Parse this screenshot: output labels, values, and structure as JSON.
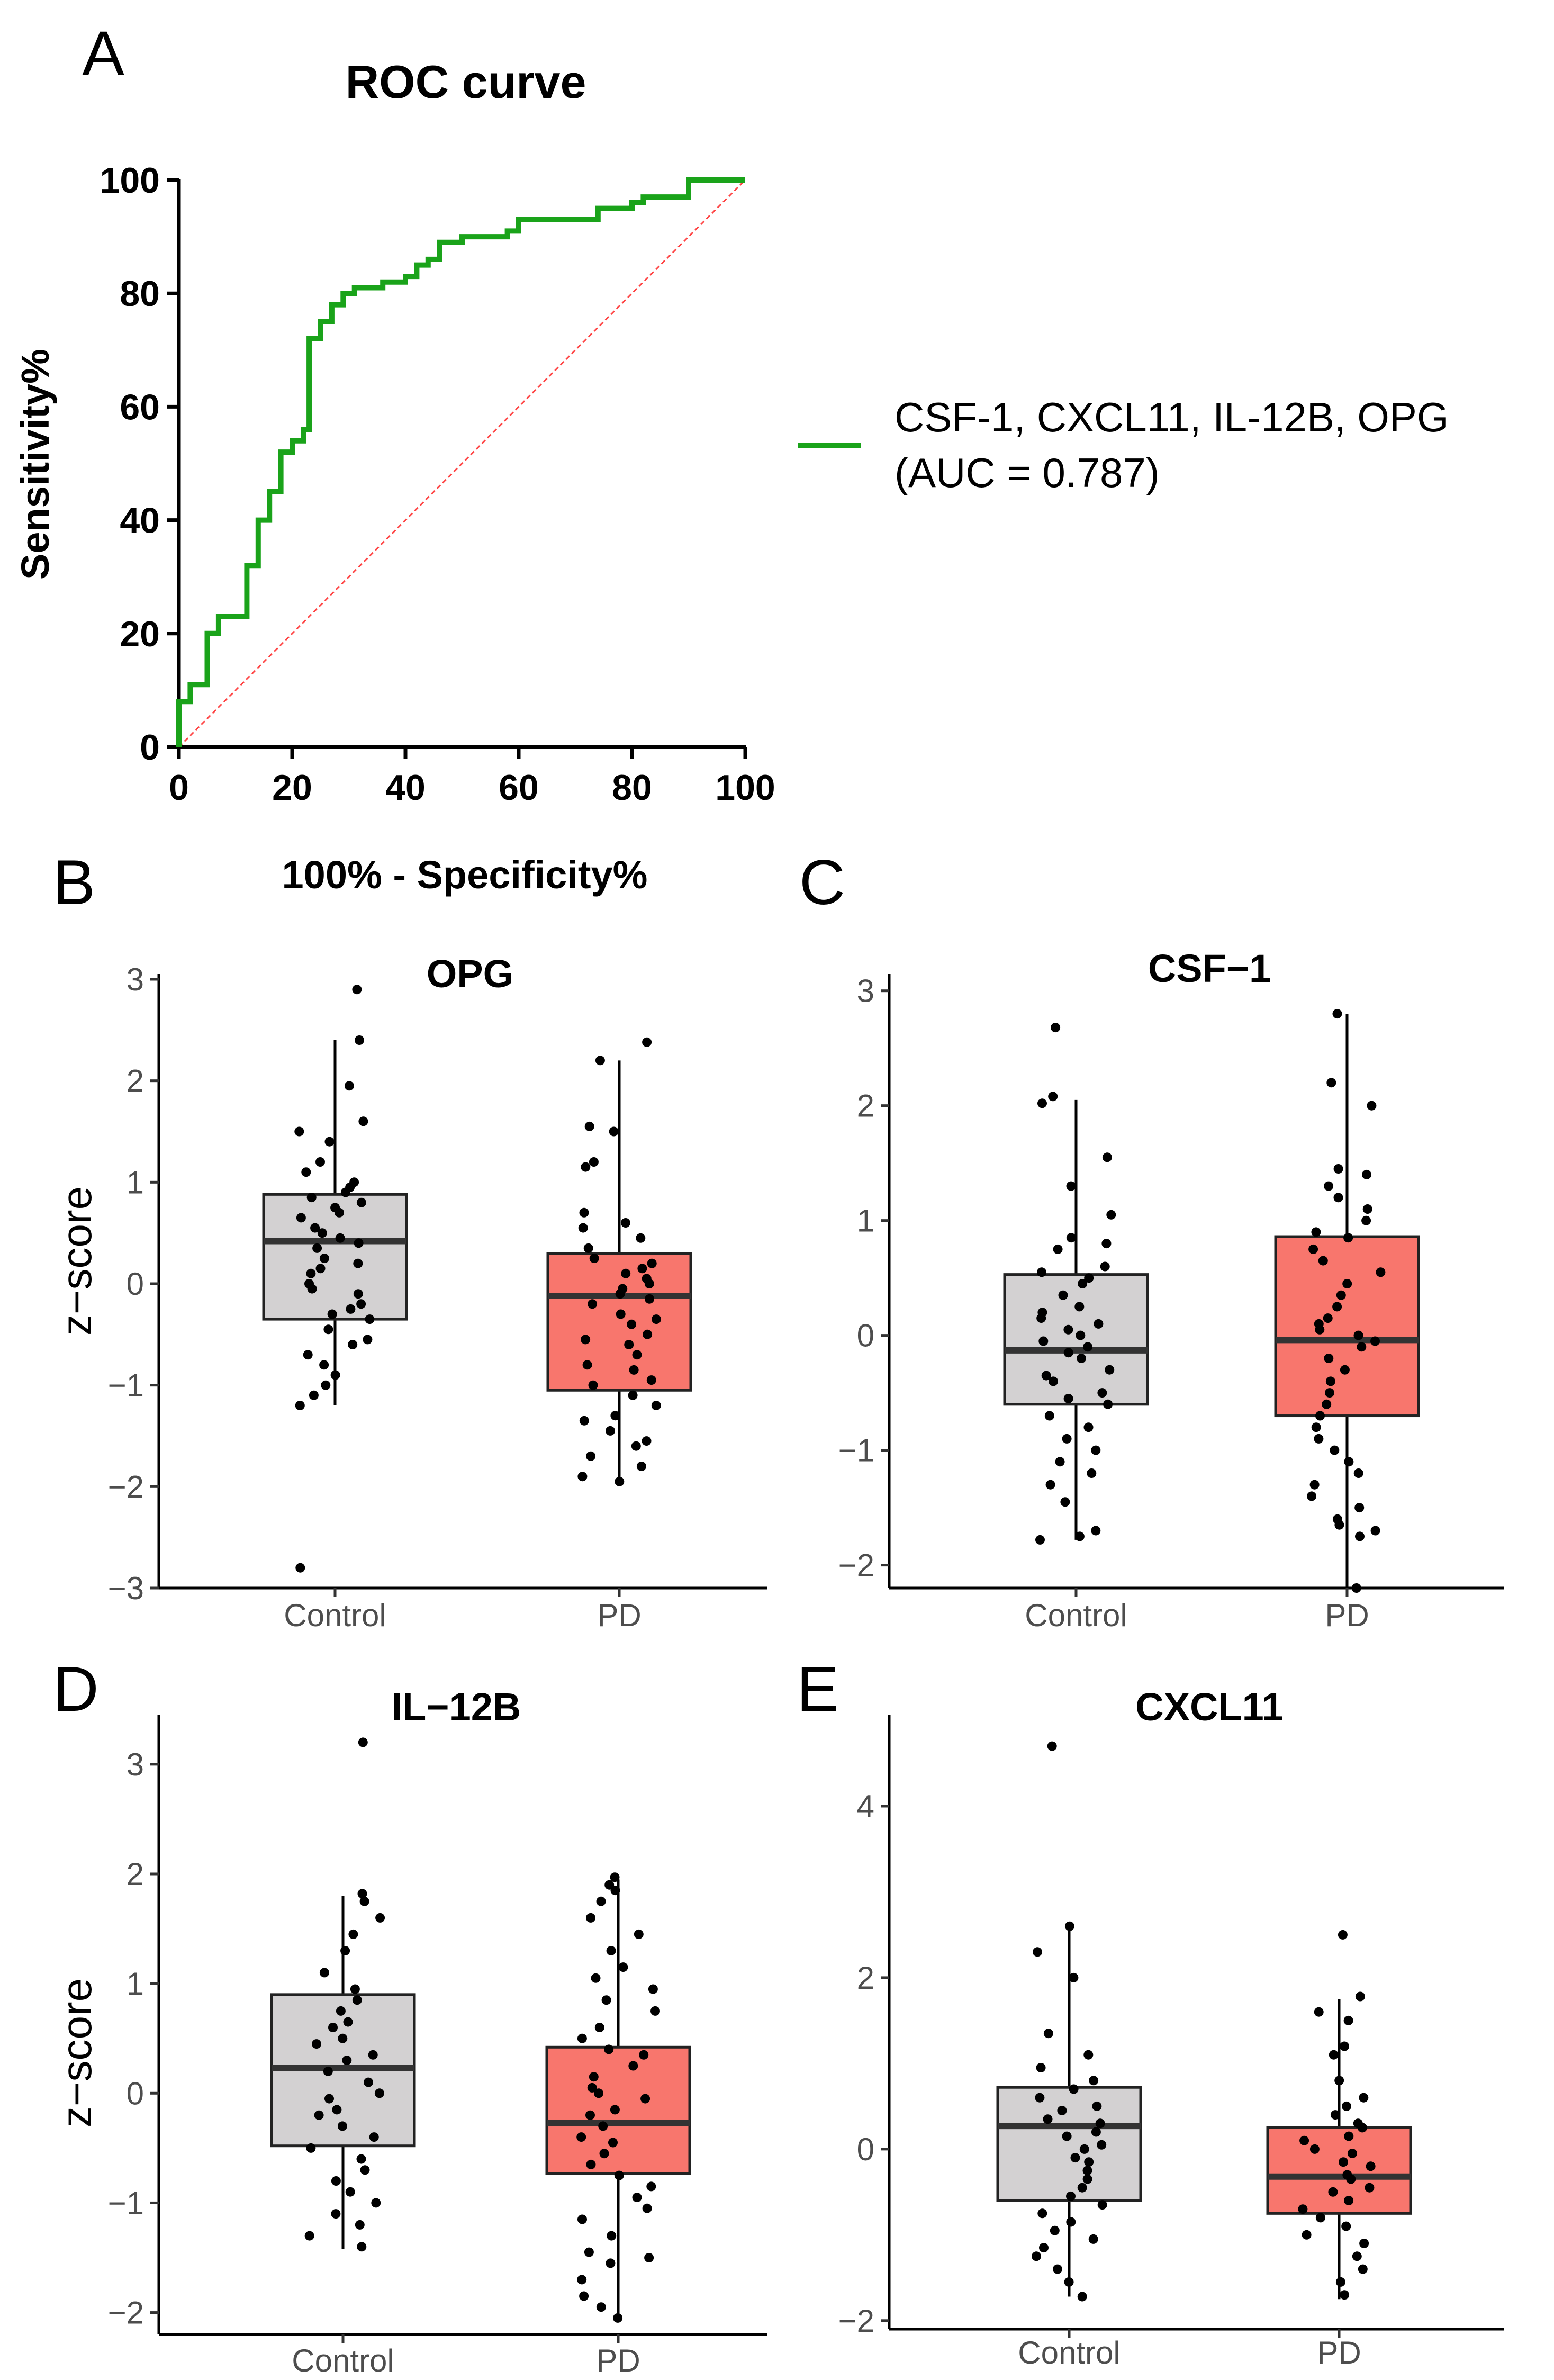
{
  "panel_letters": [
    "A",
    "B",
    "C",
    "D",
    "E"
  ],
  "chart_data": [
    {
      "panel": "A",
      "type": "line",
      "title": "ROC curve",
      "xlabel": "100% - Specificity%",
      "ylabel": "Sensitivity%",
      "xlim": [
        0,
        100
      ],
      "ylim": [
        0,
        100
      ],
      "xticks": [
        0,
        20,
        40,
        60,
        80,
        100
      ],
      "yticks": [
        0,
        20,
        40,
        60,
        80,
        100
      ],
      "series": [
        {
          "name": "CSF-1, CXCL11, IL-12B, OPG",
          "legend_line1": "CSF-1, CXCL11, IL-12B, OPG",
          "legend_line2": "(AUC = 0.787)",
          "auc": 0.787,
          "color": "#1aa31a",
          "x": [
            0,
            0,
            2,
            2,
            5,
            5,
            7,
            7,
            12,
            12,
            14,
            14,
            16,
            16,
            18,
            18,
            20,
            20,
            22,
            22,
            23,
            23,
            25,
            25,
            27,
            27,
            29,
            29,
            31,
            31,
            36,
            36,
            40,
            40,
            42,
            42,
            44,
            44,
            46,
            46,
            50,
            50,
            58,
            58,
            60,
            60,
            74,
            74,
            80,
            80,
            82,
            82,
            90,
            90,
            100
          ],
          "y": [
            0,
            8,
            8,
            11,
            11,
            20,
            20,
            23,
            23,
            32,
            32,
            40,
            40,
            45,
            45,
            52,
            52,
            54,
            54,
            56,
            56,
            72,
            72,
            75,
            75,
            78,
            78,
            80,
            80,
            81,
            81,
            82,
            82,
            83,
            83,
            85,
            85,
            86,
            86,
            89,
            89,
            90,
            90,
            91,
            91,
            93,
            93,
            95,
            95,
            96,
            96,
            97,
            97,
            100,
            100
          ]
        },
        {
          "name": "reference",
          "color": "#ff4444",
          "dashed": true,
          "x": [
            0,
            100
          ],
          "y": [
            0,
            100
          ]
        }
      ]
    },
    {
      "panel": "B",
      "type": "box",
      "title": "OPG",
      "ylabel": "z−score",
      "ylim": [
        -3,
        3
      ],
      "yticks": [
        -3,
        -2,
        -1,
        0,
        1,
        2,
        3
      ],
      "ytick_labels": [
        "−3",
        "−2",
        "−1",
        "0",
        "1",
        "2",
        "3"
      ],
      "categories": [
        "Control",
        "PD"
      ],
      "colors": [
        "#d3d1d2",
        "#f8766d"
      ],
      "boxes": [
        {
          "q1": -0.35,
          "median": 0.42,
          "q3": 0.88,
          "lower_whisker": -1.2,
          "upper_whisker": 2.4,
          "points": [
            2.9,
            2.4,
            1.95,
            1.6,
            1.5,
            1.4,
            1.2,
            1.1,
            1.0,
            0.95,
            0.9,
            0.85,
            0.8,
            0.75,
            0.7,
            0.65,
            0.55,
            0.5,
            0.45,
            0.4,
            0.35,
            0.25,
            0.2,
            0.15,
            0.1,
            0.0,
            -0.05,
            -0.1,
            -0.2,
            -0.25,
            -0.3,
            -0.35,
            -0.45,
            -0.55,
            -0.6,
            -0.7,
            -0.8,
            -0.9,
            -1.0,
            -1.1,
            -1.2,
            -2.8
          ]
        },
        {
          "q1": -1.05,
          "median": -0.12,
          "q3": 0.3,
          "lower_whisker": -1.95,
          "upper_whisker": 2.2,
          "points": [
            2.38,
            2.2,
            1.55,
            1.5,
            1.2,
            1.15,
            0.7,
            0.6,
            0.55,
            0.45,
            0.35,
            0.25,
            0.2,
            0.15,
            0.1,
            0.05,
            0.0,
            -0.05,
            -0.1,
            -0.15,
            -0.2,
            -0.3,
            -0.35,
            -0.4,
            -0.5,
            -0.55,
            -0.6,
            -0.7,
            -0.8,
            -0.85,
            -0.95,
            -1.0,
            -1.1,
            -1.2,
            -1.3,
            -1.35,
            -1.45,
            -1.55,
            -1.6,
            -1.7,
            -1.8,
            -1.9,
            -1.95
          ]
        }
      ]
    },
    {
      "panel": "C",
      "type": "box",
      "title": "CSF−1",
      "ylabel": "",
      "ylim": [
        -2.2,
        3.1
      ],
      "yticks": [
        -2,
        -1,
        0,
        1,
        2,
        3
      ],
      "ytick_labels": [
        "−2",
        "−1",
        "0",
        "1",
        "2",
        "3"
      ],
      "categories": [
        "Control",
        "PD"
      ],
      "colors": [
        "#d3d1d2",
        "#f8766d"
      ],
      "boxes": [
        {
          "q1": -0.6,
          "median": -0.13,
          "q3": 0.53,
          "lower_whisker": -1.78,
          "upper_whisker": 2.05,
          "points": [
            2.68,
            2.08,
            2.02,
            1.55,
            1.3,
            1.05,
            0.85,
            0.8,
            0.75,
            0.6,
            0.55,
            0.5,
            0.45,
            0.35,
            0.25,
            0.2,
            0.15,
            0.1,
            0.05,
            0.0,
            -0.05,
            -0.1,
            -0.15,
            -0.2,
            -0.3,
            -0.35,
            -0.4,
            -0.5,
            -0.55,
            -0.6,
            -0.7,
            -0.8,
            -0.9,
            -1.0,
            -1.1,
            -1.2,
            -1.3,
            -1.45,
            -1.7,
            -1.75,
            -1.78
          ]
        },
        {
          "q1": -0.7,
          "median": -0.04,
          "q3": 0.86,
          "lower_whisker": -2.2,
          "upper_whisker": 2.8,
          "points": [
            2.8,
            2.2,
            2.0,
            1.45,
            1.4,
            1.3,
            1.2,
            1.1,
            1.0,
            0.9,
            0.85,
            0.75,
            0.65,
            0.55,
            0.45,
            0.35,
            0.25,
            0.15,
            0.1,
            0.05,
            0.0,
            -0.05,
            -0.1,
            -0.2,
            -0.3,
            -0.4,
            -0.5,
            -0.6,
            -0.7,
            -0.8,
            -0.9,
            -1.0,
            -1.1,
            -1.2,
            -1.3,
            -1.4,
            -1.5,
            -1.6,
            -1.65,
            -1.7,
            -1.75,
            -2.2
          ]
        }
      ]
    },
    {
      "panel": "D",
      "type": "box",
      "title": "IL−12B",
      "ylabel": "z−score",
      "ylim": [
        -2.2,
        3.4
      ],
      "yticks": [
        -2,
        -1,
        0,
        1,
        2,
        3
      ],
      "ytick_labels": [
        "−2",
        "−1",
        "0",
        "1",
        "2",
        "3"
      ],
      "categories": [
        "Control",
        "PD"
      ],
      "colors": [
        "#d3d1d2",
        "#f8766d"
      ],
      "boxes": [
        {
          "q1": -0.48,
          "median": 0.23,
          "q3": 0.9,
          "lower_whisker": -1.42,
          "upper_whisker": 1.8,
          "points": [
            3.2,
            1.82,
            1.75,
            1.6,
            1.45,
            1.3,
            1.1,
            0.95,
            0.85,
            0.75,
            0.65,
            0.6,
            0.5,
            0.45,
            0.35,
            0.3,
            0.2,
            0.1,
            0.0,
            -0.05,
            -0.15,
            -0.2,
            -0.3,
            -0.4,
            -0.5,
            -0.6,
            -0.7,
            -0.8,
            -0.9,
            -1.0,
            -1.1,
            -1.2,
            -1.3,
            -1.4
          ]
        },
        {
          "q1": -0.73,
          "median": -0.27,
          "q3": 0.42,
          "lower_whisker": -2.05,
          "upper_whisker": 1.95,
          "points": [
            1.97,
            1.9,
            1.85,
            1.75,
            1.6,
            1.45,
            1.3,
            1.15,
            1.05,
            0.95,
            0.85,
            0.75,
            0.6,
            0.5,
            0.4,
            0.35,
            0.25,
            0.15,
            0.05,
            0.0,
            -0.05,
            -0.15,
            -0.2,
            -0.3,
            -0.4,
            -0.45,
            -0.55,
            -0.65,
            -0.75,
            -0.85,
            -0.95,
            -1.05,
            -1.15,
            -1.3,
            -1.45,
            -1.5,
            -1.55,
            -1.7,
            -1.85,
            -1.95,
            -2.05
          ]
        }
      ]
    },
    {
      "panel": "E",
      "type": "box",
      "title": "CXCL11",
      "ylabel": "",
      "ylim": [
        -2.1,
        5.0
      ],
      "yticks": [
        -2,
        0,
        2,
        4
      ],
      "ytick_labels": [
        "−2",
        "0",
        "2",
        "4"
      ],
      "categories": [
        "Control",
        "PD"
      ],
      "colors": [
        "#d3d1d2",
        "#f8766d"
      ],
      "boxes": [
        {
          "q1": -0.6,
          "median": 0.27,
          "q3": 0.72,
          "lower_whisker": -1.72,
          "upper_whisker": 2.55,
          "points": [
            4.7,
            2.6,
            2.3,
            2.0,
            1.35,
            1.1,
            0.95,
            0.8,
            0.7,
            0.6,
            0.5,
            0.45,
            0.35,
            0.3,
            0.2,
            0.15,
            0.05,
            0.0,
            -0.1,
            -0.15,
            -0.25,
            -0.35,
            -0.45,
            -0.55,
            -0.65,
            -0.75,
            -0.85,
            -0.95,
            -1.05,
            -1.15,
            -1.25,
            -1.4,
            -1.55,
            -1.72
          ]
        },
        {
          "q1": -0.75,
          "median": -0.32,
          "q3": 0.25,
          "lower_whisker": -1.75,
          "upper_whisker": 1.75,
          "points": [
            2.5,
            1.78,
            1.6,
            1.5,
            1.2,
            1.1,
            0.8,
            0.6,
            0.5,
            0.4,
            0.3,
            0.25,
            0.15,
            0.1,
            0.0,
            -0.05,
            -0.15,
            -0.2,
            -0.3,
            -0.35,
            -0.45,
            -0.5,
            -0.6,
            -0.7,
            -0.8,
            -0.9,
            -1.0,
            -1.1,
            -1.25,
            -1.4,
            -1.55,
            -1.7
          ]
        }
      ]
    }
  ]
}
